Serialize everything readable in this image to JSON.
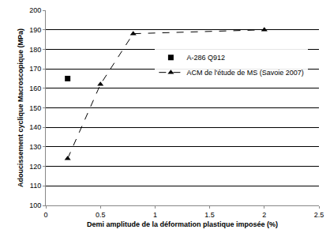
{
  "chart_data": {
    "type": "scatter",
    "x_label": "Demi amplitude de la déformation plastique imposée (%)",
    "y_label": "Adoucissement cyclique Macroscopique (MPa)",
    "xlim": [
      0,
      2.5
    ],
    "xticks": [
      0,
      0.5,
      1,
      1.5,
      2,
      2.5
    ],
    "ylim": [
      100,
      200
    ],
    "yticks": [
      100,
      110,
      120,
      130,
      140,
      150,
      160,
      170,
      180,
      190,
      200
    ],
    "grid": "y",
    "legend": "center",
    "series": [
      {
        "name": "A-286 Q912",
        "color": "#000000",
        "marker": "square",
        "line_style": "none",
        "x": [
          0.2
        ],
        "values": [
          165
        ]
      },
      {
        "name": "ACM de l'étude de MS (Savoie 2007)",
        "color": "#000000",
        "marker": "triangle",
        "line_style": "dashed",
        "x": [
          0.2,
          0.5,
          0.8,
          2.0
        ],
        "values": [
          124,
          162,
          188,
          190
        ]
      }
    ]
  }
}
